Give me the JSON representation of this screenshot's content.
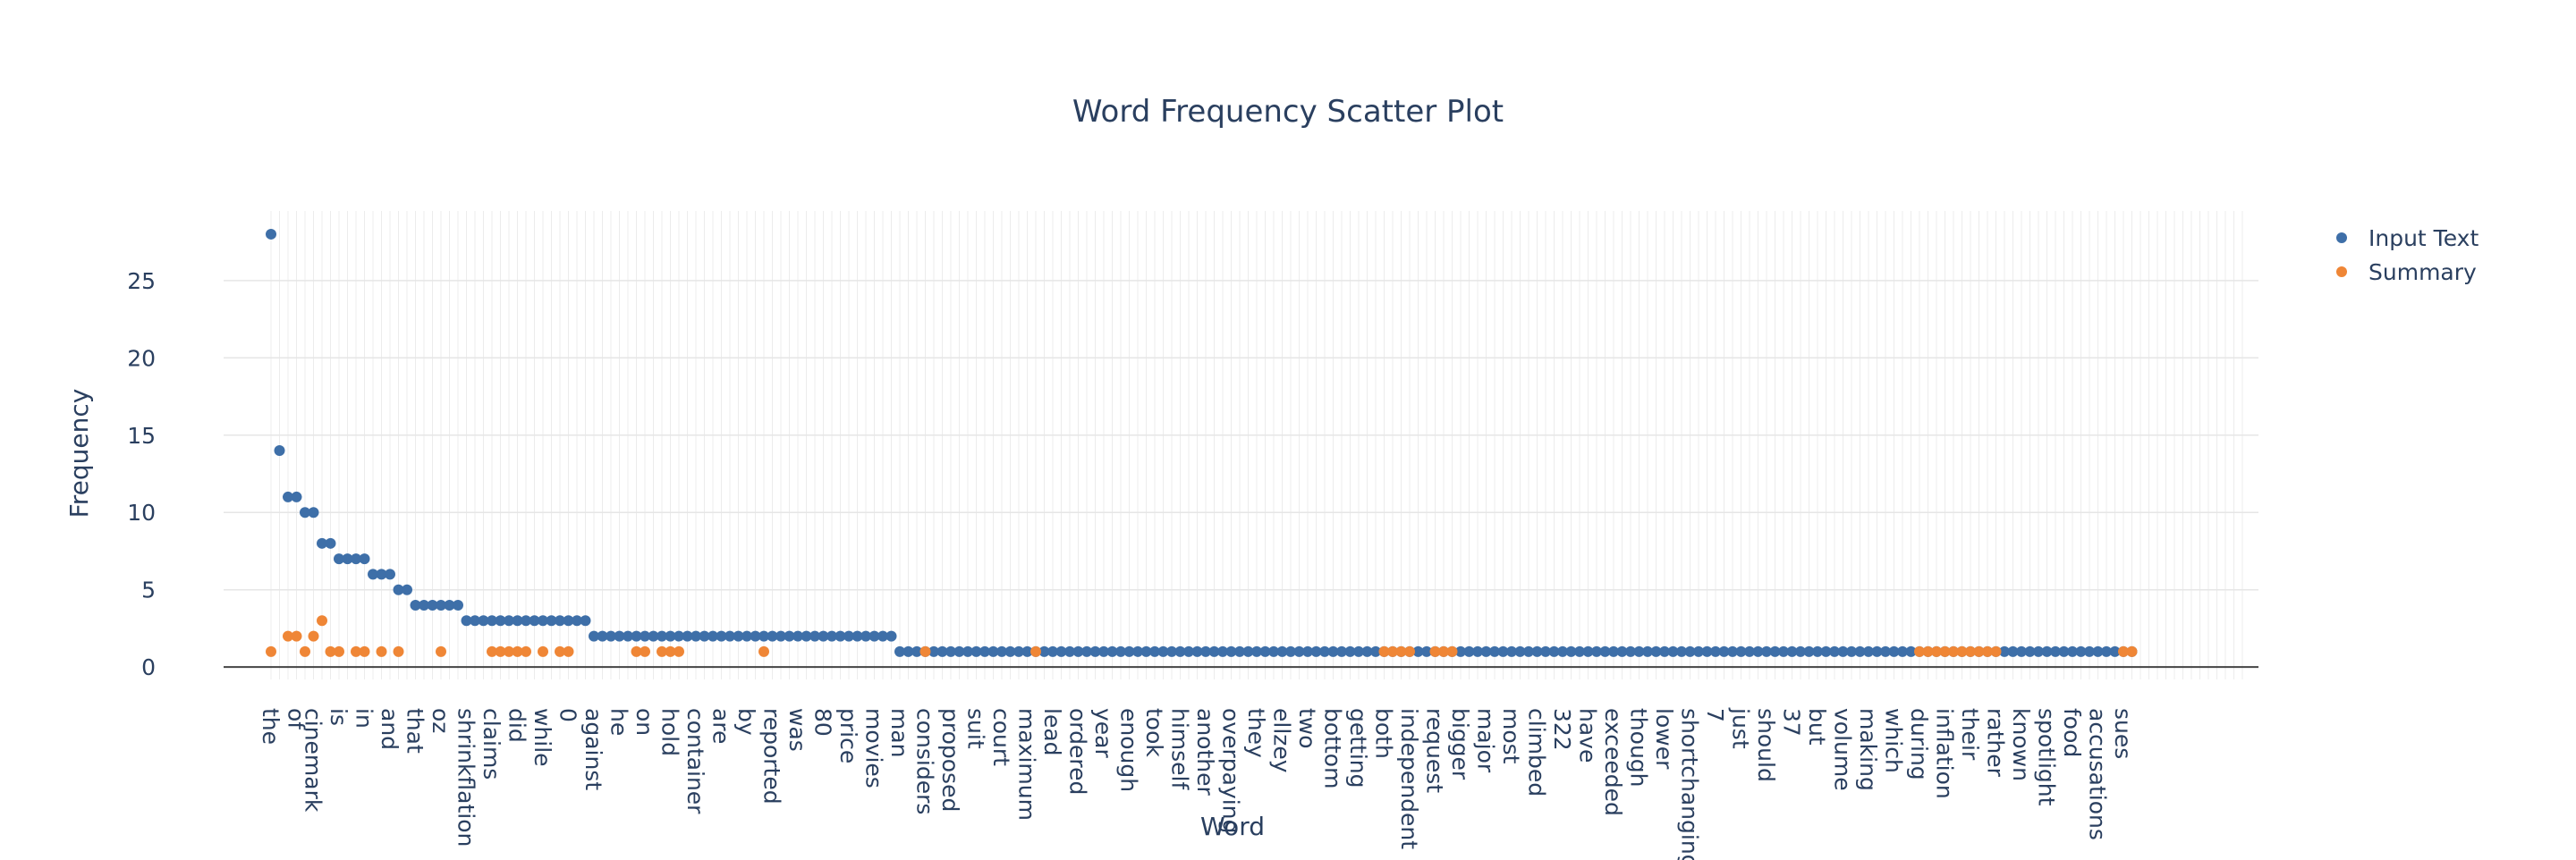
{
  "chart_data": {
    "type": "scatter",
    "title": "Word Frequency Scatter Plot",
    "xlabel": "Word",
    "ylabel": "Frequency",
    "ylim": [
      -0.8,
      29.5
    ],
    "yticks": [
      0,
      5,
      10,
      15,
      20,
      25
    ],
    "grid": true,
    "legend_position": "top-right",
    "colors": {
      "input": "#3e6fa8",
      "summary": "#ef8636"
    },
    "x_count": 233,
    "categories": [
      {
        "label": "the",
        "index": 0
      },
      {
        "label": "of",
        "index": 3
      },
      {
        "label": "cinemark",
        "index": 5
      },
      {
        "label": "is",
        "index": 8
      },
      {
        "label": "in",
        "index": 11
      },
      {
        "label": "and",
        "index": 14
      },
      {
        "label": "that",
        "index": 17
      },
      {
        "label": "oz",
        "index": 20
      },
      {
        "label": "shrinkflation",
        "index": 23
      },
      {
        "label": "claims",
        "index": 26
      },
      {
        "label": "did",
        "index": 29
      },
      {
        "label": "while",
        "index": 32
      },
      {
        "label": "0",
        "index": 35
      },
      {
        "label": "against",
        "index": 38
      },
      {
        "label": "he",
        "index": 41
      },
      {
        "label": "on",
        "index": 44
      },
      {
        "label": "hold",
        "index": 47
      },
      {
        "label": "container",
        "index": 50
      },
      {
        "label": "are",
        "index": 53
      },
      {
        "label": "by",
        "index": 56
      },
      {
        "label": "reported",
        "index": 59
      },
      {
        "label": "was",
        "index": 62
      },
      {
        "label": "80",
        "index": 65
      },
      {
        "label": "price",
        "index": 68
      },
      {
        "label": "movies",
        "index": 71
      },
      {
        "label": "man",
        "index": 74
      },
      {
        "label": "considers",
        "index": 77
      },
      {
        "label": "proposed",
        "index": 80
      },
      {
        "label": "suit",
        "index": 83
      },
      {
        "label": "court",
        "index": 86
      },
      {
        "label": "maximum",
        "index": 89
      },
      {
        "label": "lead",
        "index": 92
      },
      {
        "label": "ordered",
        "index": 95
      },
      {
        "label": "year",
        "index": 98
      },
      {
        "label": "enough",
        "index": 101
      },
      {
        "label": "took",
        "index": 104
      },
      {
        "label": "himself",
        "index": 107
      },
      {
        "label": "another",
        "index": 110
      },
      {
        "label": "overpaying",
        "index": 113
      },
      {
        "label": "they",
        "index": 116
      },
      {
        "label": "ellzey",
        "index": 119
      },
      {
        "label": "two",
        "index": 122
      },
      {
        "label": "bottom",
        "index": 125
      },
      {
        "label": "getting",
        "index": 128
      },
      {
        "label": "both",
        "index": 131
      },
      {
        "label": "independent",
        "index": 134
      },
      {
        "label": "request",
        "index": 137
      },
      {
        "label": "bigger",
        "index": 140
      },
      {
        "label": "major",
        "index": 143
      },
      {
        "label": "most",
        "index": 146
      },
      {
        "label": "climbed",
        "index": 149
      },
      {
        "label": "322",
        "index": 152
      },
      {
        "label": "have",
        "index": 155
      },
      {
        "label": "exceeded",
        "index": 158
      },
      {
        "label": "though",
        "index": 161
      },
      {
        "label": "lower",
        "index": 164
      },
      {
        "label": "shortchanging",
        "index": 167
      },
      {
        "label": "7",
        "index": 170
      },
      {
        "label": "just",
        "index": 173
      },
      {
        "label": "should",
        "index": 176
      },
      {
        "label": "37",
        "index": 179
      },
      {
        "label": "but",
        "index": 182
      },
      {
        "label": "volume",
        "index": 185
      },
      {
        "label": "making",
        "index": 188
      },
      {
        "label": "which",
        "index": 191
      },
      {
        "label": "during",
        "index": 194
      },
      {
        "label": "inflation",
        "index": 197
      },
      {
        "label": "their",
        "index": 200
      },
      {
        "label": "rather",
        "index": 203
      },
      {
        "label": "known",
        "index": 206
      },
      {
        "label": "spotlight",
        "index": 209
      },
      {
        "label": "food",
        "index": 212
      },
      {
        "label": "accusations",
        "index": 215
      },
      {
        "label": "sues",
        "index": 218
      }
    ],
    "series": [
      {
        "name": "Input Text",
        "color": "#3e6fa8",
        "runs": [
          {
            "start": 0,
            "values": [
              28
            ]
          },
          {
            "start": 1,
            "values": [
              14
            ]
          },
          {
            "start": 2,
            "values": [
              11,
              11
            ]
          },
          {
            "start": 4,
            "values": [
              10,
              10
            ]
          },
          {
            "start": 6,
            "values": [
              8,
              8
            ]
          },
          {
            "start": 8,
            "values": [
              7,
              7,
              7,
              7
            ]
          },
          {
            "start": 12,
            "values": [
              6,
              6,
              6
            ]
          },
          {
            "start": 15,
            "values": [
              5,
              5
            ]
          },
          {
            "start": 17,
            "values": [
              4,
              4,
              4,
              4,
              4,
              4
            ]
          },
          {
            "start": 23,
            "values": [
              3,
              3,
              3,
              3,
              3,
              3,
              3,
              3,
              3,
              3,
              3,
              3,
              3,
              3,
              3
            ]
          },
          {
            "start": 38,
            "values": [
              2,
              2,
              2,
              2,
              2,
              2,
              2,
              2,
              2,
              2,
              2,
              2,
              2,
              2,
              2,
              2,
              2,
              2,
              2,
              2,
              2,
              2,
              2,
              2,
              2,
              2,
              2,
              2,
              2,
              2,
              2,
              2,
              2,
              2,
              2,
              2
            ]
          },
          {
            "start": 74,
            "values": [
              1,
              1,
              1,
              1,
              1,
              1,
              1,
              1,
              1,
              1,
              1,
              1,
              1,
              1,
              1,
              1,
              1,
              1,
              1,
              1,
              1,
              1,
              1,
              1,
              1,
              1,
              1,
              1,
              1,
              1,
              1,
              1,
              1,
              1,
              1,
              1,
              1,
              1,
              1,
              1,
              1,
              1,
              1,
              1,
              1,
              1,
              1,
              1,
              1,
              1,
              1,
              1,
              1,
              1,
              1,
              1,
              1,
              1,
              1,
              1,
              1,
              1,
              1,
              1,
              1,
              1,
              1,
              1,
              1,
              1,
              1,
              1,
              1,
              1,
              1,
              1,
              1,
              1,
              1,
              1,
              1,
              1,
              1,
              1,
              1,
              1,
              1,
              1,
              1,
              1,
              1,
              1,
              1,
              1,
              1,
              1,
              1,
              1,
              1,
              1,
              1,
              1,
              1,
              1,
              1,
              1,
              1,
              1,
              1,
              1,
              1,
              1,
              1,
              1,
              1,
              1,
              1,
              1,
              1,
              1,
              1,
              1,
              1,
              1,
              1,
              1,
              1,
              1,
              1,
              1,
              1,
              1,
              1,
              1,
              1,
              1,
              1,
              1,
              1,
              1,
              1,
              1,
              1,
              1,
              1,
              1
            ]
          }
        ]
      },
      {
        "name": "Summary",
        "color": "#ef8636",
        "points": [
          {
            "x": 0,
            "y": 1
          },
          {
            "x": 2,
            "y": 2
          },
          {
            "x": 3,
            "y": 2
          },
          {
            "x": 4,
            "y": 1
          },
          {
            "x": 5,
            "y": 2
          },
          {
            "x": 6,
            "y": 3
          },
          {
            "x": 7,
            "y": 1
          },
          {
            "x": 8,
            "y": 1
          },
          {
            "x": 10,
            "y": 1
          },
          {
            "x": 11,
            "y": 1
          },
          {
            "x": 13,
            "y": 1
          },
          {
            "x": 15,
            "y": 1
          },
          {
            "x": 20,
            "y": 1
          },
          {
            "x": 26,
            "y": 1
          },
          {
            "x": 27,
            "y": 1
          },
          {
            "x": 28,
            "y": 1
          },
          {
            "x": 29,
            "y": 1
          },
          {
            "x": 30,
            "y": 1
          },
          {
            "x": 32,
            "y": 1
          },
          {
            "x": 34,
            "y": 1
          },
          {
            "x": 35,
            "y": 1
          },
          {
            "x": 43,
            "y": 1
          },
          {
            "x": 44,
            "y": 1
          },
          {
            "x": 46,
            "y": 1
          },
          {
            "x": 47,
            "y": 1
          },
          {
            "x": 48,
            "y": 1
          },
          {
            "x": 58,
            "y": 1
          },
          {
            "x": 77,
            "y": 1
          },
          {
            "x": 90,
            "y": 1
          },
          {
            "x": 131,
            "y": 1
          },
          {
            "x": 132,
            "y": 1
          },
          {
            "x": 133,
            "y": 1
          },
          {
            "x": 134,
            "y": 1
          },
          {
            "x": 137,
            "y": 1
          },
          {
            "x": 138,
            "y": 1
          },
          {
            "x": 139,
            "y": 1
          },
          {
            "x": 194,
            "y": 1
          },
          {
            "x": 195,
            "y": 1
          },
          {
            "x": 196,
            "y": 1
          },
          {
            "x": 197,
            "y": 1
          },
          {
            "x": 198,
            "y": 1
          },
          {
            "x": 199,
            "y": 1
          },
          {
            "x": 200,
            "y": 1
          },
          {
            "x": 201,
            "y": 1
          },
          {
            "x": 202,
            "y": 1
          },
          {
            "x": 203,
            "y": 1
          },
          {
            "x": 218,
            "y": 1
          },
          {
            "x": 219,
            "y": 1
          }
        ]
      }
    ]
  }
}
